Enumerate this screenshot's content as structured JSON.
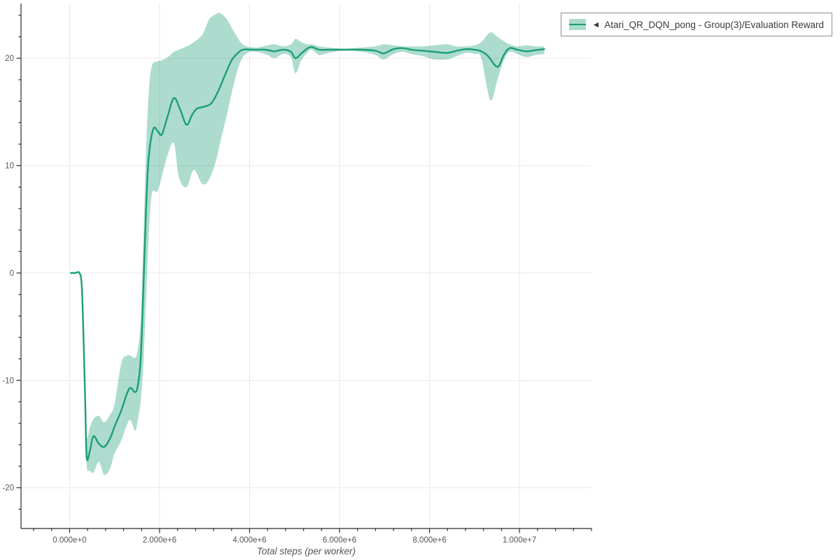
{
  "figure": {
    "background": "#ffffff"
  },
  "legend": {
    "marker": "◄",
    "label": "Atari_QR_DQN_pong - Group(3)/Evaluation Reward"
  },
  "colors": {
    "line": "#1b9e77",
    "band": "rgba(27,158,119,0.36)",
    "band_solid": "#a9dcc8",
    "grid": "#e8e8e8",
    "axis": "#2b2b2b",
    "tick_label": "#555555",
    "axis_title": "#555555",
    "legend_border": "#8f8f8f",
    "legend_text": "#3a3a3a"
  },
  "chart_data": {
    "type": "line",
    "title": "",
    "xlabel": "Total steps (per worker)",
    "ylabel": "",
    "grid": "major-only",
    "legend_position": "top-right",
    "xlim": [
      -1080000,
      11600000
    ],
    "ylim": [
      -23.8,
      25.1
    ],
    "x_minor_step": 400000,
    "y_minor_step": 2,
    "x_ticks_major": [
      {
        "value": 0,
        "label": "0.000e+0"
      },
      {
        "value": 2000000,
        "label": "2.000e+6"
      },
      {
        "value": 4000000,
        "label": "4.000e+6"
      },
      {
        "value": 6000000,
        "label": "6.000e+6"
      },
      {
        "value": 8000000,
        "label": "8.000e+6"
      },
      {
        "value": 10000000,
        "label": "1.000e+7"
      }
    ],
    "y_ticks_major": [
      {
        "value": -20,
        "label": "-20"
      },
      {
        "value": -10,
        "label": "-10"
      },
      {
        "value": 0,
        "label": "0"
      },
      {
        "value": 10,
        "label": "10"
      },
      {
        "value": 20,
        "label": "20"
      }
    ],
    "series": [
      {
        "name": "Atari_QR_DQN_pong - Group(3)/Evaluation Reward",
        "mean": [
          [
            30000,
            0
          ],
          [
            120000,
            0
          ],
          [
            220000,
            0
          ],
          [
            270000,
            -1.2
          ],
          [
            310000,
            -6
          ],
          [
            350000,
            -12.5
          ],
          [
            380000,
            -17.2
          ],
          [
            450000,
            -16.6
          ],
          [
            530000,
            -15.2
          ],
          [
            650000,
            -15.9
          ],
          [
            770000,
            -16.2
          ],
          [
            900000,
            -15.4
          ],
          [
            1000000,
            -14.3
          ],
          [
            1150000,
            -12.8
          ],
          [
            1270000,
            -11.3
          ],
          [
            1350000,
            -10.7
          ],
          [
            1460000,
            -11.1
          ],
          [
            1520000,
            -10.4
          ],
          [
            1580000,
            -8.0
          ],
          [
            1640000,
            -1.5
          ],
          [
            1700000,
            6.0
          ],
          [
            1760000,
            10.8
          ],
          [
            1860000,
            13.4
          ],
          [
            1960000,
            13.2
          ],
          [
            2050000,
            12.9
          ],
          [
            2180000,
            14.6
          ],
          [
            2320000,
            16.3
          ],
          [
            2460000,
            15.2
          ],
          [
            2600000,
            13.8
          ],
          [
            2720000,
            14.7
          ],
          [
            2830000,
            15.3
          ],
          [
            3000000,
            15.5
          ],
          [
            3150000,
            15.8
          ],
          [
            3300000,
            16.9
          ],
          [
            3450000,
            18.4
          ],
          [
            3600000,
            19.8
          ],
          [
            3720000,
            20.4
          ],
          [
            3850000,
            20.8
          ],
          [
            4100000,
            20.8
          ],
          [
            4350000,
            20.8
          ],
          [
            4550000,
            20.65
          ],
          [
            4750000,
            20.8
          ],
          [
            4920000,
            20.6
          ],
          [
            5020000,
            20.0
          ],
          [
            5150000,
            20.45
          ],
          [
            5280000,
            20.9
          ],
          [
            5380000,
            21.05
          ],
          [
            5550000,
            20.8
          ],
          [
            5750000,
            20.8
          ],
          [
            6100000,
            20.8
          ],
          [
            6500000,
            20.8
          ],
          [
            6800000,
            20.7
          ],
          [
            6980000,
            20.45
          ],
          [
            7200000,
            20.85
          ],
          [
            7400000,
            20.95
          ],
          [
            7600000,
            20.8
          ],
          [
            7850000,
            20.7
          ],
          [
            8100000,
            20.6
          ],
          [
            8390000,
            20.5
          ],
          [
            8600000,
            20.7
          ],
          [
            8810000,
            20.85
          ],
          [
            9000000,
            20.8
          ],
          [
            9150000,
            20.65
          ],
          [
            9300000,
            20.2
          ],
          [
            9510000,
            19.2
          ],
          [
            9650000,
            20.3
          ],
          [
            9780000,
            20.95
          ],
          [
            9950000,
            20.8
          ],
          [
            10150000,
            20.65
          ],
          [
            10350000,
            20.75
          ],
          [
            10550000,
            20.85
          ]
        ],
        "band": [
          [
            30000,
            0,
            0
          ],
          [
            120000,
            0,
            0
          ],
          [
            220000,
            -0.1,
            0
          ],
          [
            270000,
            -1.5,
            -1.0
          ],
          [
            310000,
            -6.6,
            -5.5
          ],
          [
            350000,
            -13.3,
            -11.6
          ],
          [
            380000,
            -18.0,
            -15.3
          ],
          [
            450000,
            -18.4,
            -14.4
          ],
          [
            530000,
            -18.6,
            -13.6
          ],
          [
            650000,
            -17.6,
            -13.3
          ],
          [
            770000,
            -18.8,
            -13.9
          ],
          [
            900000,
            -18.2,
            -13.2
          ],
          [
            1000000,
            -16.8,
            -12.2
          ],
          [
            1150000,
            -15.6,
            -8.4
          ],
          [
            1270000,
            -14.2,
            -7.7
          ],
          [
            1350000,
            -13.7,
            -7.7
          ],
          [
            1460000,
            -14.7,
            -7.9
          ],
          [
            1520000,
            -13.6,
            -7.0
          ],
          [
            1580000,
            -12.0,
            -4.5
          ],
          [
            1640000,
            -8.5,
            3.0
          ],
          [
            1700000,
            -2.5,
            11.5
          ],
          [
            1760000,
            3.5,
            16.8
          ],
          [
            1830000,
            7.4,
            19.3
          ],
          [
            1950000,
            7.6,
            19.7
          ],
          [
            2050000,
            9.0,
            19.8
          ],
          [
            2180000,
            11.0,
            20.1
          ],
          [
            2320000,
            12.1,
            20.6
          ],
          [
            2430000,
            8.9,
            20.8
          ],
          [
            2600000,
            8.0,
            21.1
          ],
          [
            2760000,
            9.6,
            21.5
          ],
          [
            2950000,
            8.3,
            22.2
          ],
          [
            3100000,
            8.7,
            23.6
          ],
          [
            3250000,
            10.4,
            24.1
          ],
          [
            3350000,
            12.2,
            24.2
          ],
          [
            3500000,
            14.8,
            23.6
          ],
          [
            3650000,
            17.6,
            22.5
          ],
          [
            3800000,
            19.7,
            21.5
          ],
          [
            3950000,
            20.5,
            21.1
          ],
          [
            4150000,
            20.6,
            21.0
          ],
          [
            4400000,
            20.3,
            21.2
          ],
          [
            4550000,
            20.0,
            21.3
          ],
          [
            4750000,
            20.4,
            21.1
          ],
          [
            4920000,
            20.1,
            21.3
          ],
          [
            5020000,
            18.6,
            21.8
          ],
          [
            5150000,
            19.8,
            21.5
          ],
          [
            5280000,
            20.5,
            21.3
          ],
          [
            5380000,
            20.8,
            21.3
          ],
          [
            5550000,
            20.3,
            21.1
          ],
          [
            5750000,
            20.5,
            21.0
          ],
          [
            6100000,
            20.7,
            20.9
          ],
          [
            6500000,
            20.6,
            21.0
          ],
          [
            6800000,
            20.3,
            21.1
          ],
          [
            6980000,
            19.9,
            21.3
          ],
          [
            7200000,
            20.4,
            21.2
          ],
          [
            7400000,
            20.6,
            21.1
          ],
          [
            7600000,
            20.4,
            21.1
          ],
          [
            7850000,
            20.2,
            21.1
          ],
          [
            8100000,
            19.9,
            21.2
          ],
          [
            8390000,
            19.9,
            21.3
          ],
          [
            8600000,
            20.2,
            21.1
          ],
          [
            8810000,
            20.5,
            21.1
          ],
          [
            9000000,
            20.4,
            21.2
          ],
          [
            9150000,
            20.0,
            21.5
          ],
          [
            9350000,
            16.1,
            22.4
          ],
          [
            9510000,
            18.0,
            22.0
          ],
          [
            9650000,
            19.8,
            21.6
          ],
          [
            9780000,
            20.6,
            21.3
          ],
          [
            9950000,
            20.4,
            21.1
          ],
          [
            10150000,
            20.1,
            21.2
          ],
          [
            10350000,
            20.3,
            21.1
          ],
          [
            10550000,
            20.4,
            21.1
          ]
        ]
      }
    ]
  }
}
